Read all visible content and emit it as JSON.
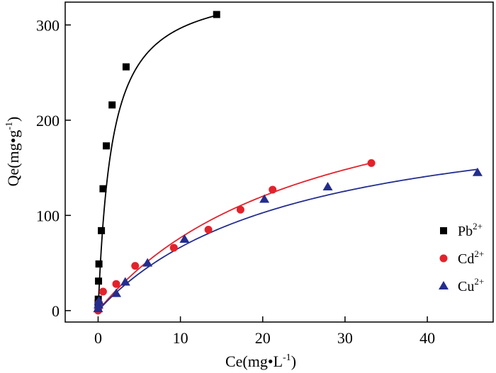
{
  "chart_data": {
    "type": "scatter",
    "xlabel": "Ce(mg•L",
    "xlabel_sup": "-1",
    "xlabel_close": ")",
    "ylabel": "Qe(mg•g",
    "ylabel_sup": "-1",
    "ylabel_close": ")",
    "xlim": [
      -4,
      48
    ],
    "ylim": [
      -12,
      324
    ],
    "xticks": [
      0,
      10,
      20,
      30,
      40
    ],
    "yticks": [
      0,
      100,
      200,
      300
    ],
    "grid": false,
    "legend_position": "bottom-right",
    "series": [
      {
        "name": "Pb",
        "name_sup": "2+",
        "marker": "square",
        "color": "#000000",
        "x": [
          0.0,
          0.02,
          0.05,
          0.1,
          0.4,
          0.6,
          1.0,
          1.7,
          3.4,
          14.4
        ],
        "y": [
          8,
          12,
          31,
          49,
          84,
          128,
          173,
          216,
          256,
          311
        ],
        "fit": {
          "model": "langmuir",
          "qmax": 346,
          "k": 0.6
        }
      },
      {
        "name": "Cd",
        "name_sup": "2+",
        "marker": "circle",
        "color": "#e3222b",
        "x": [
          0.0,
          0.05,
          0.1,
          0.6,
          2.2,
          4.5,
          9.2,
          13.4,
          17.3,
          21.2,
          33.2
        ],
        "y": [
          0,
          3,
          8,
          20,
          28,
          47,
          66,
          85,
          106,
          127,
          155
        ],
        "fit": {
          "model": "langmuir",
          "qmax": 278,
          "k": 0.038
        }
      },
      {
        "name": "Cu",
        "name_sup": "2+",
        "marker": "triangle",
        "color": "#232d8f",
        "x": [
          0.0,
          0.05,
          0.1,
          2.2,
          3.3,
          6.0,
          10.5,
          20.2,
          27.9,
          46.1
        ],
        "y": [
          2,
          6,
          10,
          18,
          30,
          50,
          75,
          117,
          130,
          145
        ],
        "fit": {
          "model": "langmuir",
          "qmax": 225,
          "k": 0.042
        }
      }
    ]
  }
}
